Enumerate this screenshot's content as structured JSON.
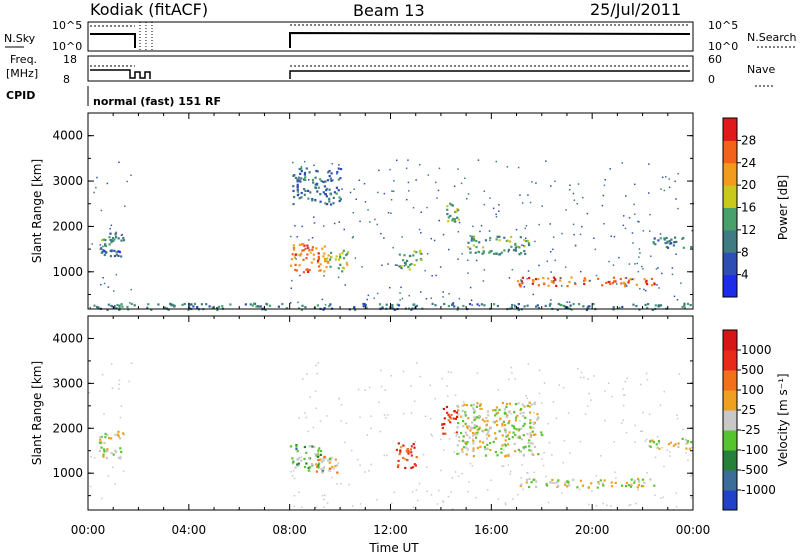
{
  "header": {
    "station": "Kodiak (fitACF)",
    "beam": "Beam 13",
    "date": "25/Jul/2011"
  },
  "status_panels": {
    "nsky_label": "N.Sky",
    "nsky_ticks": [
      "10^5",
      "10^0"
    ],
    "nsearch_label": "N.Search",
    "nsearch_ticks": [
      "10^5",
      "10^0"
    ],
    "freq_label_top": "Freq.",
    "freq_label_bottom": "[MHz]",
    "freq_ticks": [
      "18",
      "8"
    ],
    "nave_label": "Nave",
    "nave_ticks": [
      "60",
      "0"
    ],
    "cpid_label": "CPID",
    "cpid_value": "normal (fast) 151 RF"
  },
  "chart_data": [
    {
      "type": "heatmap",
      "title": "Power",
      "ylabel": "Slant Range [km]",
      "xlabel": "Time UT",
      "y_ticks": [
        "1000",
        "2000",
        "3000",
        "4000"
      ],
      "ylim": [
        180,
        4500
      ],
      "colorbar_label": "Power [dB]",
      "colorbar_ticks": [
        "4",
        "8",
        "12",
        "16",
        "20",
        "24",
        "28"
      ],
      "colorbar_colors": [
        "#1c2ce8",
        "#2f4eb4",
        "#3e7b83",
        "#48a06a",
        "#c9c81e",
        "#f39b1c",
        "#f2621a",
        "#e01a1a"
      ],
      "regions": [
        {
          "t0": 0.4,
          "t1": 1.4,
          "r0": 1500,
          "r1": 1900,
          "level": 0.35
        },
        {
          "t0": 0.5,
          "t1": 1.3,
          "r0": 1350,
          "r1": 1500,
          "level": 0.2
        },
        {
          "t0": 8.0,
          "t1": 9.5,
          "r0": 1000,
          "r1": 1650,
          "level": 0.8
        },
        {
          "t0": 8.1,
          "t1": 10.0,
          "r0": 2500,
          "r1": 3300,
          "level": 0.25
        },
        {
          "t0": 9.5,
          "t1": 10.3,
          "r0": 1000,
          "r1": 1500,
          "level": 0.5
        },
        {
          "t0": 12.3,
          "t1": 13.2,
          "r0": 1050,
          "r1": 1500,
          "level": 0.45
        },
        {
          "t0": 14.2,
          "t1": 14.7,
          "r0": 2100,
          "r1": 2600,
          "level": 0.45
        },
        {
          "t0": 15.0,
          "t1": 17.5,
          "r0": 1400,
          "r1": 1800,
          "level": 0.4
        },
        {
          "t0": 17.0,
          "t1": 22.5,
          "r0": 700,
          "r1": 900,
          "level": 0.85
        },
        {
          "t0": 22.2,
          "t1": 23.9,
          "r0": 1550,
          "r1": 1800,
          "level": 0.3
        },
        {
          "t0": 0.2,
          "t1": 23.9,
          "r0": 180,
          "r1": 320,
          "level": 0.3
        }
      ]
    },
    {
      "type": "heatmap",
      "title": "Velocity",
      "ylabel": "Slant Range [km]",
      "xlabel": "Time UT",
      "y_ticks": [
        "1000",
        "2000",
        "3000",
        "4000"
      ],
      "ylim": [
        180,
        4500
      ],
      "colorbar_label": "Velocity [m s⁻¹]",
      "colorbar_ticks": [
        "1000",
        "500",
        "100",
        "25",
        "-25",
        "-100",
        "-500",
        "-1000"
      ],
      "colorbar_colors": [
        "#2142c8",
        "#3c6c9a",
        "#27803a",
        "#56c42e",
        "#c8c8c8",
        "#f0a020",
        "#f2701a",
        "#e82a1a",
        "#d51616"
      ],
      "regions": [
        {
          "t0": 0.4,
          "t1": 1.4,
          "r0": 1350,
          "r1": 1950,
          "level": 0.5
        },
        {
          "t0": 8.0,
          "t1": 9.3,
          "r0": 1050,
          "r1": 1650,
          "level": 0.35
        },
        {
          "t0": 9.0,
          "t1": 10.0,
          "r0": 1000,
          "r1": 1400,
          "level": 0.6
        },
        {
          "t0": 12.2,
          "t1": 13.0,
          "r0": 1100,
          "r1": 1700,
          "level": 0.82
        },
        {
          "t0": 14.0,
          "t1": 14.6,
          "r0": 1900,
          "r1": 2500,
          "level": 0.88
        },
        {
          "t0": 14.6,
          "t1": 18.0,
          "r0": 1400,
          "r1": 2600,
          "level": 0.5
        },
        {
          "t0": 17.0,
          "t1": 22.5,
          "r0": 700,
          "r1": 900,
          "level": 0.5
        },
        {
          "t0": 22.2,
          "t1": 23.9,
          "r0": 1550,
          "r1": 1800,
          "level": 0.5
        }
      ]
    }
  ],
  "x_axis": {
    "ticks": [
      "00:00",
      "04:00",
      "08:00",
      "12:00",
      "16:00",
      "20:00",
      "00:00"
    ],
    "label": "Time UT"
  }
}
